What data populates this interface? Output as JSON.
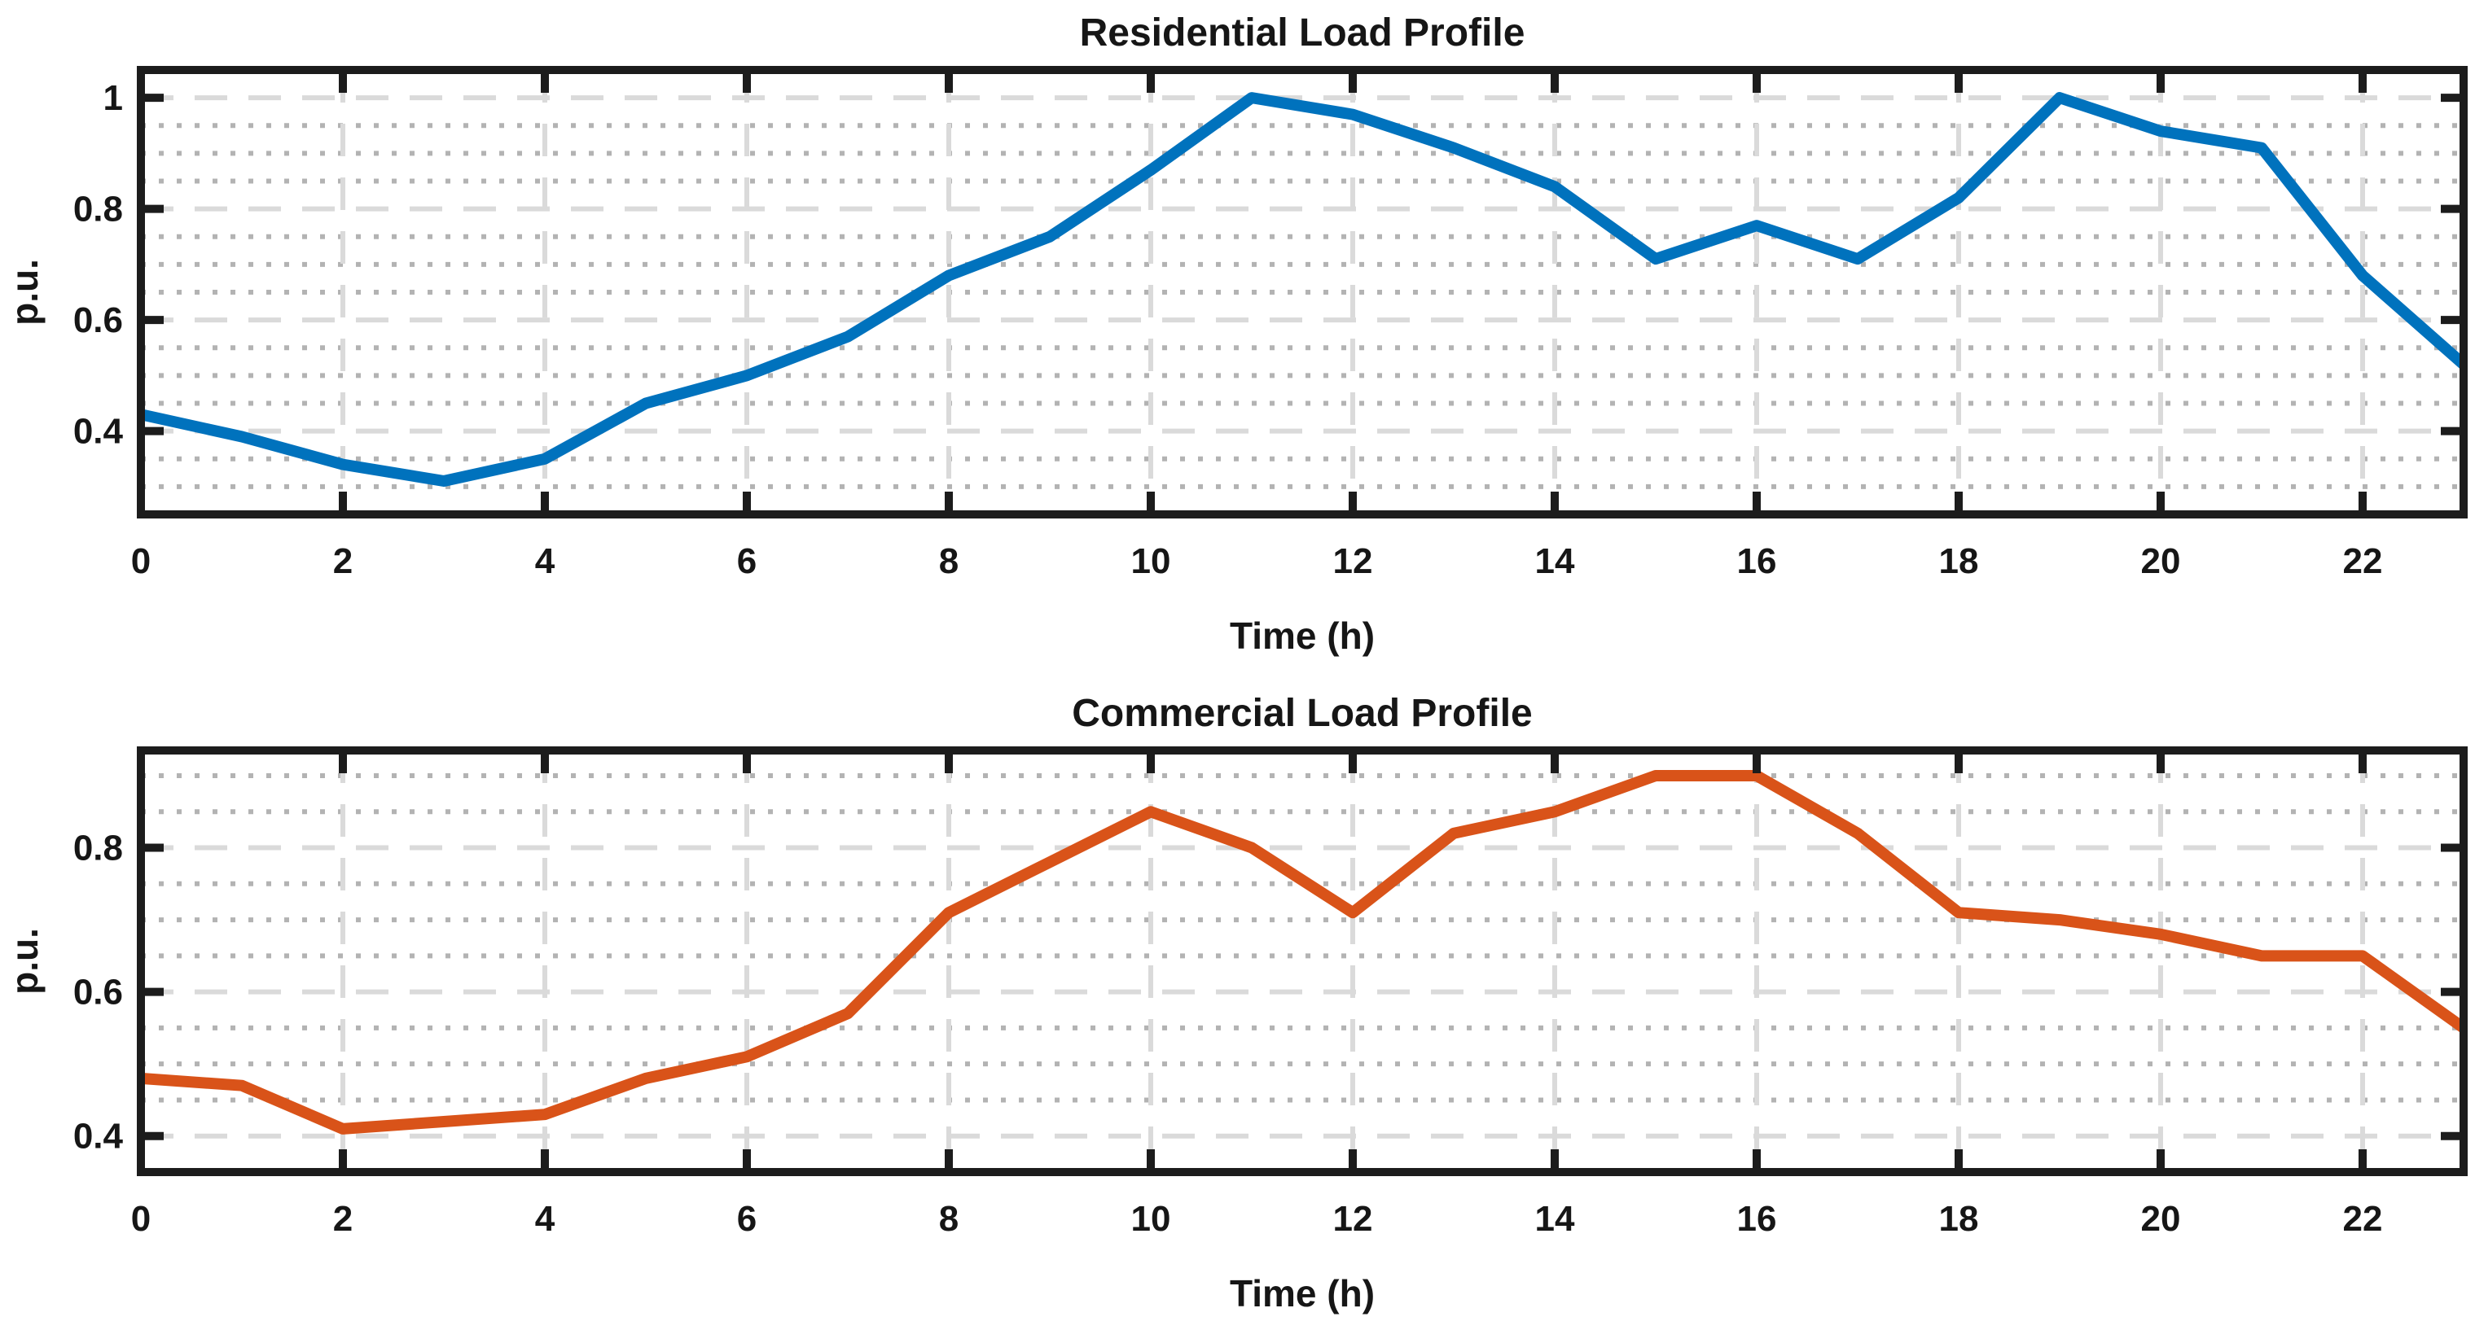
{
  "figure": {
    "background": "#ffffff",
    "axis_color": "#1c1c1c",
    "text_color": "#161616",
    "grid_major_color": "#dadada",
    "grid_minor_color": "#b3b3b3"
  },
  "chart_data": [
    {
      "type": "line",
      "title": "Residential Load Profile",
      "xlabel": "Time (h)",
      "ylabel": "p.u.",
      "x": [
        0,
        1,
        2,
        3,
        4,
        5,
        6,
        7,
        8,
        9,
        10,
        11,
        12,
        13,
        14,
        15,
        16,
        17,
        18,
        19,
        20,
        21,
        22,
        23
      ],
      "series": [
        {
          "name": "Residential",
          "color": "#0072BD",
          "values": [
            0.43,
            0.39,
            0.34,
            0.31,
            0.35,
            0.45,
            0.5,
            0.57,
            0.68,
            0.75,
            0.87,
            1.0,
            0.97,
            0.91,
            0.84,
            0.71,
            0.77,
            0.71,
            0.82,
            1.0,
            0.94,
            0.91,
            0.68,
            0.52
          ]
        }
      ],
      "xlim": [
        0,
        23
      ],
      "ylim": [
        0.25,
        1.05
      ],
      "x_tick_values": [
        0,
        2,
        4,
        6,
        8,
        10,
        12,
        14,
        16,
        18,
        20,
        22
      ],
      "x_tick_labels": [
        "0",
        "2",
        "4",
        "6",
        "8",
        "10",
        "12",
        "14",
        "16",
        "18",
        "20",
        "22"
      ],
      "y_tick_values": [
        0.4,
        0.6,
        0.8,
        1
      ],
      "y_tick_labels": [
        "0.4",
        "0.6",
        "0.8",
        "1"
      ],
      "y_minor_values": [
        0.3,
        0.35,
        0.45,
        0.5,
        0.55,
        0.65,
        0.7,
        0.75,
        0.85,
        0.9,
        0.95
      ],
      "grid": {
        "major": "dashed",
        "minor": "dotted"
      },
      "legend": "none"
    },
    {
      "type": "line",
      "title": "Commercial Load Profile",
      "xlabel": "Time (h)",
      "ylabel": "p.u.",
      "x": [
        0,
        1,
        2,
        3,
        4,
        5,
        6,
        7,
        8,
        9,
        10,
        11,
        12,
        13,
        14,
        15,
        16,
        17,
        18,
        19,
        20,
        21,
        22,
        23
      ],
      "series": [
        {
          "name": "Commercial",
          "color": "#D95319",
          "values": [
            0.48,
            0.47,
            0.41,
            0.42,
            0.43,
            0.48,
            0.51,
            0.57,
            0.71,
            0.78,
            0.85,
            0.8,
            0.71,
            0.82,
            0.85,
            0.9,
            0.9,
            0.82,
            0.71,
            0.7,
            0.68,
            0.65,
            0.65,
            0.55
          ]
        }
      ],
      "xlim": [
        0,
        23
      ],
      "ylim": [
        0.35,
        0.935
      ],
      "x_tick_values": [
        0,
        2,
        4,
        6,
        8,
        10,
        12,
        14,
        16,
        18,
        20,
        22
      ],
      "x_tick_labels": [
        "0",
        "2",
        "4",
        "6",
        "8",
        "10",
        "12",
        "14",
        "16",
        "18",
        "20",
        "22"
      ],
      "y_tick_values": [
        0.4,
        0.6,
        0.8
      ],
      "y_tick_labels": [
        "0.4",
        "0.6",
        "0.8"
      ],
      "y_minor_values": [
        0.45,
        0.5,
        0.55,
        0.65,
        0.7,
        0.75,
        0.85,
        0.9
      ],
      "grid": {
        "major": "dashed",
        "minor": "dotted"
      },
      "legend": "none"
    }
  ]
}
